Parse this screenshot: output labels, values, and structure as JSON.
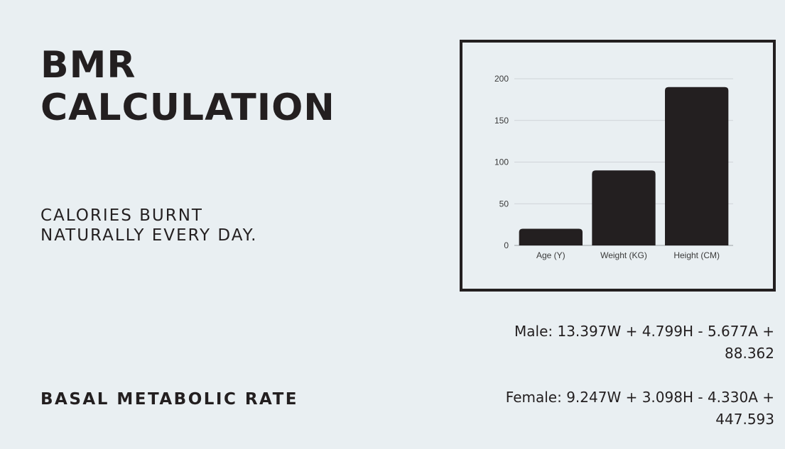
{
  "heading": {
    "line1": "BMR",
    "line2": "CALCULATION"
  },
  "subheading": {
    "line1": "CALORIES BURNT",
    "line2": "NATURALLY EVERY DAY."
  },
  "footer_label": "BASAL METABOLIC RATE",
  "formulas": {
    "male": "Male: 13.397W + 4.799H - 5.677A + 88.362",
    "female": "Female: 9.247W + 3.098H - 4.330A + 447.593"
  },
  "colors": {
    "background": "#e9eff2",
    "ink": "#231f20",
    "gridline": "#cfd4d8"
  },
  "chart_data": {
    "type": "bar",
    "categories": [
      "Age (Y)",
      "Weight (KG)",
      "Height (CM)"
    ],
    "values": [
      20,
      90,
      190
    ],
    "yticks": [
      0,
      50,
      100,
      150,
      200
    ],
    "ylim": [
      0,
      200
    ],
    "grid": true,
    "title": "",
    "xlabel": "",
    "ylabel": ""
  }
}
